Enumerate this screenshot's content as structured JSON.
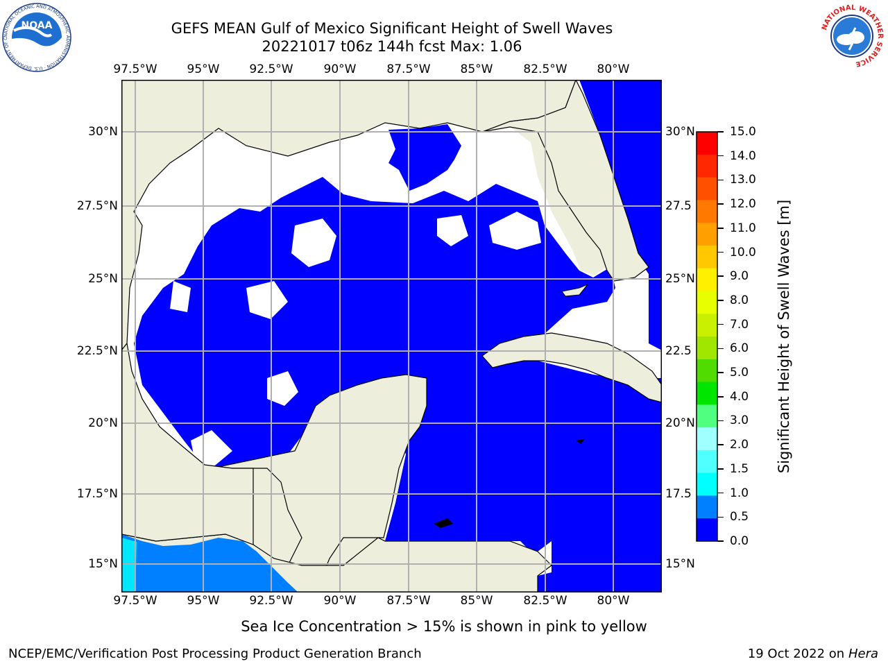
{
  "header": {
    "title_line1": "GEFS MEAN Gulf of Mexico Significant Height of Swell Waves",
    "title_line2": "20221017 t06z 144h fcst   Max: 1.06"
  },
  "logos": {
    "left": "NOAA",
    "left_ring_text": "NATIONAL OCEANIC AND ATMOSPHERIC ADMINISTRATION · U.S. DEPARTMENT OF COMMERCE",
    "right_ring_text": "NATIONAL WEATHER SERVICE"
  },
  "map": {
    "lon_labels": [
      "97.5°W",
      "95°W",
      "92.5°W",
      "90°W",
      "87.5°W",
      "85°W",
      "82.5°W",
      "80°W"
    ],
    "lat_labels_left": [
      "30°N",
      "27.5°N",
      "25°N",
      "22.5°N",
      "20°N",
      "17.5°N",
      "15°N"
    ],
    "lat_labels_right": [
      "30°N",
      "27.5",
      "25°N",
      "22.5",
      "20°N",
      "17.5",
      "15°N"
    ],
    "lon_range": [
      -98,
      -78.2
    ],
    "lat_range": [
      14,
      31.7
    ],
    "grid": true,
    "colors": {
      "land": "#eeeedc",
      "sea_low": "#0000ff",
      "sea_zero": "#ffffff",
      "pacific": "#0080ff",
      "pacific_edge": "#00e8ff",
      "gridline": "#b0b0b0"
    }
  },
  "colorbar": {
    "label": "Significant Height of Swell Waves [m]",
    "ticks": [
      "15.0",
      "14.0",
      "13.0",
      "12.0",
      "11.0",
      "10.0",
      "9.0",
      "8.0",
      "7.0",
      "6.0",
      "5.0",
      "4.0",
      "3.0",
      "2.0",
      "1.5",
      "1.0",
      "0.5",
      "0.0"
    ],
    "colors": [
      "#ff0000",
      "#ff2800",
      "#ff5000",
      "#ff7800",
      "#ffa000",
      "#ffc800",
      "#fff000",
      "#e8ff00",
      "#c8f000",
      "#a0e600",
      "#50dc00",
      "#00e600",
      "#50ff80",
      "#a0ffff",
      "#50ffff",
      "#00ffff",
      "#0080ff",
      "#0000ff"
    ]
  },
  "notes": {
    "sea_ice": "Sea Ice Concentration > 15% is shown in pink to yellow"
  },
  "footer": {
    "left": "NCEP/EMC/Verification Post Processing Product Generation Branch",
    "right_date": "19 Oct 2022 on",
    "right_host": "Hera"
  }
}
